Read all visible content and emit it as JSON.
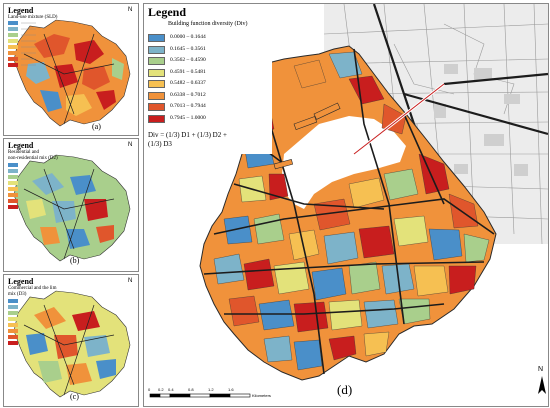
{
  "colors": {
    "c1": "#4a8fc9",
    "c2": "#7db3c9",
    "c3": "#a9cf8c",
    "c4": "#e3e27a",
    "c5": "#f6c052",
    "c6": "#f0923b",
    "c7": "#e0562c",
    "c8": "#c81e1e",
    "road": "#2a2a2a",
    "water": "#ffffff",
    "gray_city": "#d8d8d8"
  },
  "panel_a": {
    "legend_title": "Legend",
    "legend_subtitle": "Land-use mixture (SLD)",
    "letter": "(a)",
    "north": "N"
  },
  "panel_b": {
    "legend_title": "Legend",
    "legend_subtitle_line1": "Residential and",
    "legend_subtitle_line2": "non-residential mix (D2)",
    "letter": "(b)",
    "north": "N"
  },
  "panel_c": {
    "legend_title": "Legend",
    "legend_subtitle_line1": "Commercial and the lim",
    "legend_subtitle_line2": "mix (D3)",
    "letter": "(c)",
    "north": "N"
  },
  "main": {
    "legend_title": "Legend",
    "legend_subtitle": "Building function diversity (Div)",
    "classes": [
      {
        "label": "0.0000 – 0.1644",
        "color": "#4a8fc9"
      },
      {
        "label": "0.1645 – 0.3561",
        "color": "#7db3c9"
      },
      {
        "label": "0.3562 – 0.4590",
        "color": "#a9cf8c"
      },
      {
        "label": "0.4591 – 0.5481",
        "color": "#e3e27a"
      },
      {
        "label": "0.5482 – 0.6337",
        "color": "#f6c052"
      },
      {
        "label": "0.6338 – 0.7012",
        "color": "#f0923b"
      },
      {
        "label": "0.7013 – 0.7944",
        "color": "#e0562c"
      },
      {
        "label": "0.7945 – 1.0000",
        "color": "#c81e1e"
      }
    ],
    "formula_line1": "Div = (1/3) D1 + (1/3) D2 +",
    "formula_line2": "(1/3) D3",
    "letter": "(d)",
    "north": "N"
  },
  "scale_bar": {
    "ticks": [
      "0",
      "0.2",
      "0.4",
      "0.8",
      "1.2",
      "1.6"
    ],
    "unit": "Kilometers"
  }
}
